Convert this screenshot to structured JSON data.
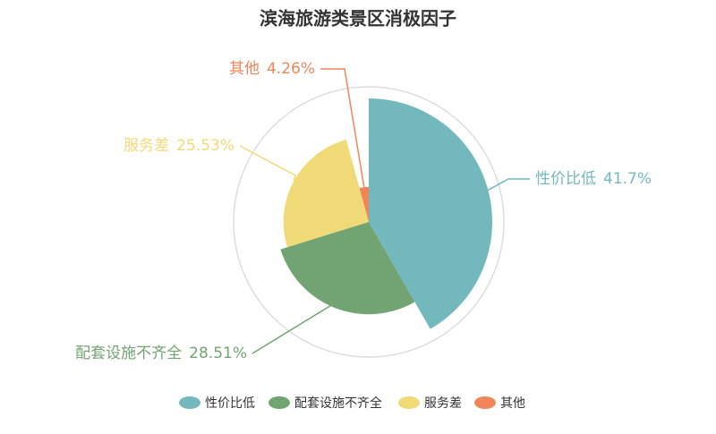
{
  "chart_data": {
    "type": "rose",
    "title": "滨海旅游类景区消极因子",
    "categories": [
      "性价比低",
      "配套设施不齐全",
      "服务差",
      "其他"
    ],
    "values": [
      41.7,
      28.51,
      25.53,
      4.26
    ],
    "value_labels": [
      "41.7%",
      "28.51%",
      "25.53%",
      "4.26%"
    ],
    "colors": [
      "#72b8bd",
      "#72a373",
      "#f0da78",
      "#f0855a"
    ],
    "legend": "bottom"
  }
}
